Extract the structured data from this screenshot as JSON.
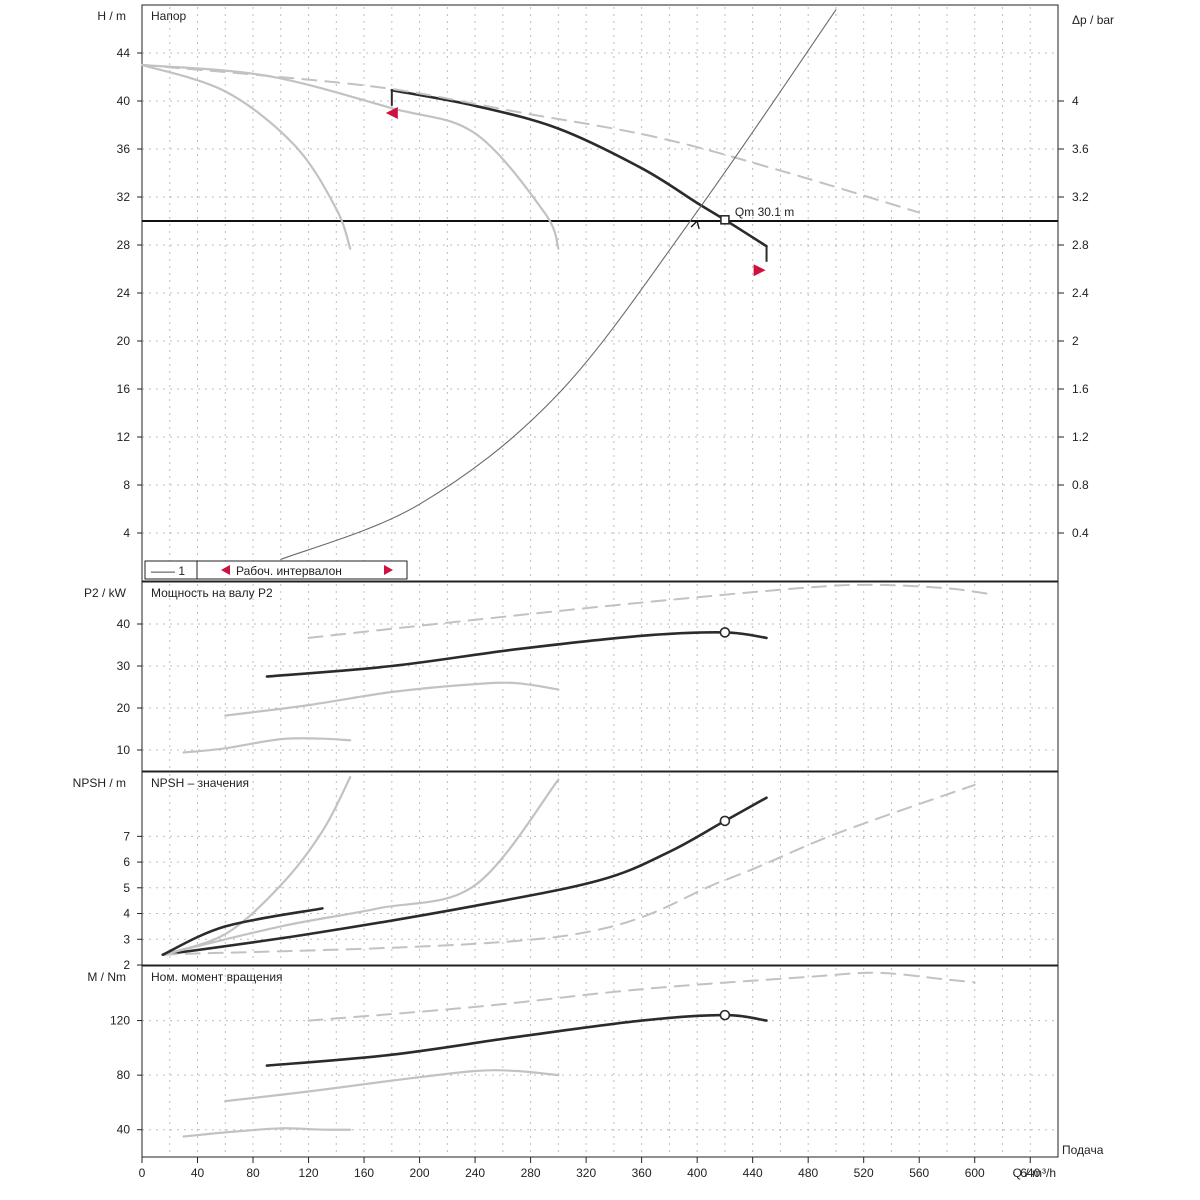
{
  "colors": {
    "axis": "#222222",
    "grid": "#bdbdbd",
    "main": "#2b2b2b",
    "thin": "#6b6b6b",
    "alt": "#c2c2c2",
    "marker": "#d01040"
  },
  "chart_data": [
    {
      "type": "line",
      "title": "Напор",
      "ylabel": "H / m",
      "ylabel_right": "Δp / bar",
      "xlim": [
        0,
        660
      ],
      "ylim": [
        0,
        48
      ],
      "ylim_right": [
        0,
        4.8
      ],
      "yticks": [
        4,
        8,
        12,
        16,
        20,
        24,
        28,
        32,
        36,
        40,
        44
      ],
      "yticks_right": [
        0.4,
        0.8,
        1.2,
        1.6,
        2,
        2.4,
        2.8,
        3.2,
        3.6,
        4
      ],
      "operating_point_label": "Qm  30.1 m",
      "legend": {
        "item1": "—— 1",
        "item2": "Рабоч. интервалон"
      },
      "series": [
        {
          "style": "main",
          "x": [
            180,
            240,
            300,
            360,
            400,
            420,
            450
          ],
          "y": [
            40.9,
            39.6,
            37.7,
            34.4,
            31.5,
            30.1,
            27.9
          ]
        },
        {
          "style": "alt_dashed",
          "x": [
            0,
            90,
            180,
            270,
            370,
            460,
            560
          ],
          "y": [
            43.0,
            42.1,
            41.0,
            39.1,
            37.0,
            34.2,
            30.7
          ]
        },
        {
          "style": "alt",
          "x": [
            0,
            90,
            180,
            240,
            290,
            300
          ],
          "y": [
            43.0,
            42.1,
            39.4,
            37.3,
            30.7,
            27.7
          ]
        },
        {
          "style": "alt",
          "x": [
            0,
            60,
            110,
            140,
            150
          ],
          "y": [
            43.0,
            40.8,
            36.3,
            31.0,
            27.7
          ]
        },
        {
          "style": "system",
          "x": [
            100,
            200,
            300,
            400,
            500
          ],
          "y": [
            1.8,
            6.4,
            15.6,
            30.8,
            47.6
          ]
        },
        {
          "style": "marker",
          "x": [
            180,
            445
          ],
          "y": [
            39.0,
            25.9
          ]
        }
      ],
      "duty_line": {
        "y": 30.0
      }
    },
    {
      "type": "line",
      "title": "Мощность на валу P2",
      "ylabel": "P2 / kW",
      "xlim": [
        0,
        660
      ],
      "ylim": [
        5,
        50
      ],
      "yticks": [
        10,
        20,
        30,
        40
      ],
      "series": [
        {
          "style": "main",
          "x": [
            90,
            180,
            270,
            360,
            420,
            450
          ],
          "y": [
            27.5,
            30.0,
            34.0,
            37.2,
            38.0,
            36.7
          ]
        },
        {
          "style": "alt",
          "x": [
            60,
            120,
            180,
            240,
            270,
            300
          ],
          "y": [
            18.2,
            20.7,
            23.8,
            25.7,
            25.9,
            24.4
          ]
        },
        {
          "style": "alt",
          "x": [
            30,
            60,
            100,
            130,
            150
          ],
          "y": [
            9.4,
            10.4,
            12.6,
            12.7,
            12.3
          ]
        },
        {
          "style": "alt_dashed",
          "x": [
            120,
            240,
            360,
            480,
            530,
            580,
            610
          ],
          "y": [
            36.7,
            41.0,
            45.1,
            48.7,
            49.3,
            48.5,
            47.2
          ]
        }
      ]
    },
    {
      "type": "line",
      "title": "NPSH – значения",
      "ylabel": "NPSH / m",
      "xlim": [
        0,
        660
      ],
      "ylim": [
        2,
        9.5
      ],
      "yticks": [
        2,
        3,
        4,
        5,
        6,
        7
      ],
      "series": [
        {
          "style": "main",
          "x": [
            15,
            120,
            240,
            330,
            380,
            420,
            450
          ],
          "y": [
            2.4,
            3.2,
            4.3,
            5.3,
            6.4,
            7.6,
            8.5
          ]
        },
        {
          "style": "alt",
          "x": [
            15,
            100,
            170,
            240,
            300
          ],
          "y": [
            2.4,
            3.5,
            4.2,
            5.1,
            9.2
          ]
        },
        {
          "style": "alt",
          "x": [
            15,
            60,
            100,
            130,
            150
          ],
          "y": [
            2.4,
            3.2,
            5.1,
            7.2,
            9.3
          ]
        },
        {
          "style": "alt_dashed",
          "x": [
            15,
            300,
            420,
            500,
            600
          ],
          "y": [
            2.4,
            3.1,
            5.3,
            7.1,
            9.0
          ]
        },
        {
          "style": "main",
          "x": [
            15,
            60,
            130
          ],
          "y": [
            2.4,
            3.5,
            4.2
          ]
        }
      ]
    },
    {
      "type": "line",
      "title": "Ном. момент вращения",
      "ylabel": "M / Nm",
      "xlabel": "Q / m³/h",
      "x_right_label": "Подача",
      "xlim": [
        0,
        660
      ],
      "ylim": [
        20,
        160
      ],
      "yticks": [
        40,
        80,
        120
      ],
      "xticks": [
        0,
        40,
        80,
        120,
        160,
        200,
        240,
        280,
        320,
        360,
        400,
        440,
        480,
        520,
        560,
        600,
        640
      ],
      "series": [
        {
          "style": "main",
          "x": [
            90,
            180,
            270,
            360,
            420,
            450
          ],
          "y": [
            87,
            95,
            108,
            120,
            124,
            120
          ]
        },
        {
          "style": "alt",
          "x": [
            60,
            120,
            180,
            240,
            270,
            300
          ],
          "y": [
            61,
            68,
            76,
            83,
            83,
            80
          ]
        },
        {
          "style": "alt",
          "x": [
            30,
            60,
            100,
            130,
            150
          ],
          "y": [
            35,
            38,
            41,
            40,
            40
          ]
        },
        {
          "style": "alt_dashed",
          "x": [
            120,
            240,
            360,
            480,
            530,
            580,
            600
          ],
          "y": [
            120,
            130,
            143,
            152,
            155,
            150,
            148
          ]
        }
      ]
    }
  ]
}
